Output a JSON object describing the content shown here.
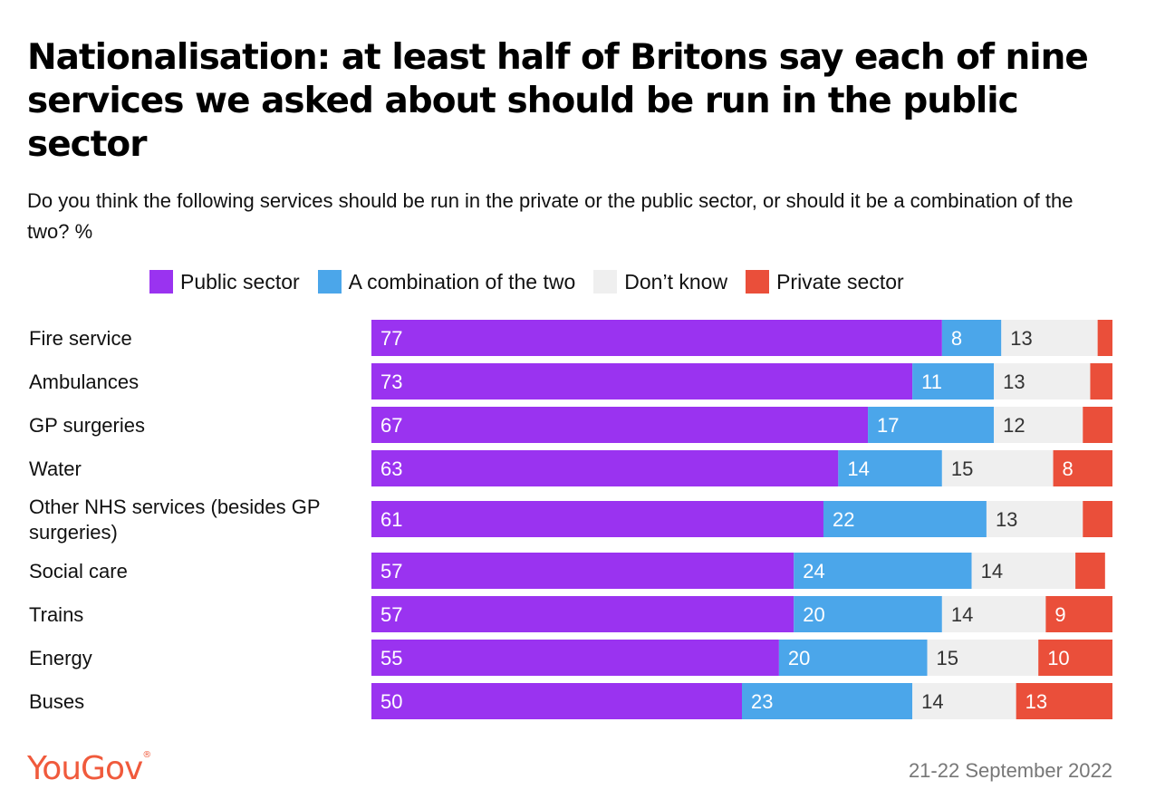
{
  "title": "Nationalisation: at least half of Britons say each of nine services we asked about should be run in the public sector",
  "subtitle": "Do you think the following services should be run in the private or the public sector, or should it be a combination of the two? %",
  "brand": "YouGov",
  "brand_mark": "®",
  "date": "21-22 September 2022",
  "chart_data": {
    "type": "bar",
    "orientation": "horizontal",
    "stacked": true,
    "categories": [
      "Fire service",
      "Ambulances",
      "GP surgeries",
      "Water",
      "Other NHS services (besides GP surgeries)",
      "Social care",
      "Trains",
      "Energy",
      "Buses"
    ],
    "series": [
      {
        "name": "Public sector",
        "color": "#9a33f0",
        "values": [
          77,
          73,
          67,
          63,
          61,
          57,
          57,
          55,
          50
        ],
        "labels": [
          "77",
          "73",
          "67",
          "63",
          "61",
          "57",
          "57",
          "55",
          "50"
        ]
      },
      {
        "name": "A combination of the two",
        "color": "#4ba6ea",
        "values": [
          8,
          11,
          17,
          14,
          22,
          24,
          20,
          20,
          23
        ],
        "labels": [
          "8",
          "11",
          "17",
          "14",
          "22",
          "24",
          "20",
          "20",
          "23"
        ]
      },
      {
        "name": "Don’t know",
        "color": "#efefef",
        "values": [
          13,
          13,
          12,
          15,
          13,
          14,
          14,
          15,
          14
        ],
        "labels": [
          "13",
          "13",
          "12",
          "15",
          "13",
          "14",
          "14",
          "15",
          "14"
        ]
      },
      {
        "name": "Private sector",
        "color": "#ea4f3a",
        "values": [
          2,
          3,
          4,
          8,
          4,
          4,
          9,
          10,
          13
        ],
        "labels": [
          "",
          "",
          "",
          "8",
          "",
          "",
          "9",
          "10",
          "13"
        ]
      }
    ],
    "xlim": [
      0,
      100
    ],
    "legend_position": "top",
    "grid": false
  }
}
